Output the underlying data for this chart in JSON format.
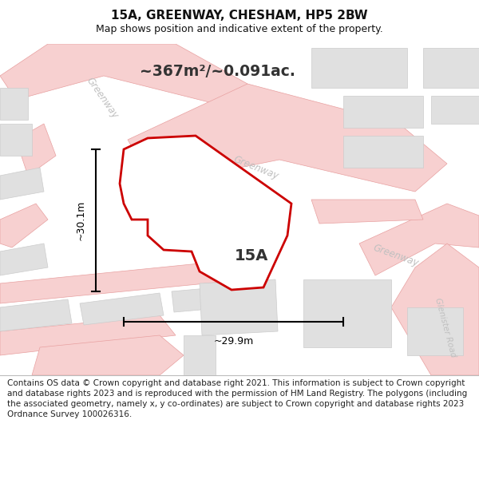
{
  "title": "15A, GREENWAY, CHESHAM, HP5 2BW",
  "subtitle": "Map shows position and indicative extent of the property.",
  "area_text": "~367m²/~0.091ac.",
  "label_15a": "15A",
  "dim_width": "~29.9m",
  "dim_height": "~30.1m",
  "copyright_text": "Contains OS data © Crown copyright and database right 2021. This information is subject to Crown copyright and database rights 2023 and is reproduced with the permission of HM Land Registry. The polygons (including the associated geometry, namely x, y co-ordinates) are subject to Crown copyright and database rights 2023 Ordnance Survey 100026316.",
  "bg_color": "#ffffff",
  "road_color": "#f7d0d0",
  "road_edge": "#e8a0a0",
  "bld_fill": "#e0e0e0",
  "bld_edge": "#cccccc",
  "prop_fill": "#ffffff",
  "prop_edge": "#cc0000",
  "road_label_color": "#c0c0c0",
  "title_fontsize": 11,
  "subtitle_fontsize": 9
}
